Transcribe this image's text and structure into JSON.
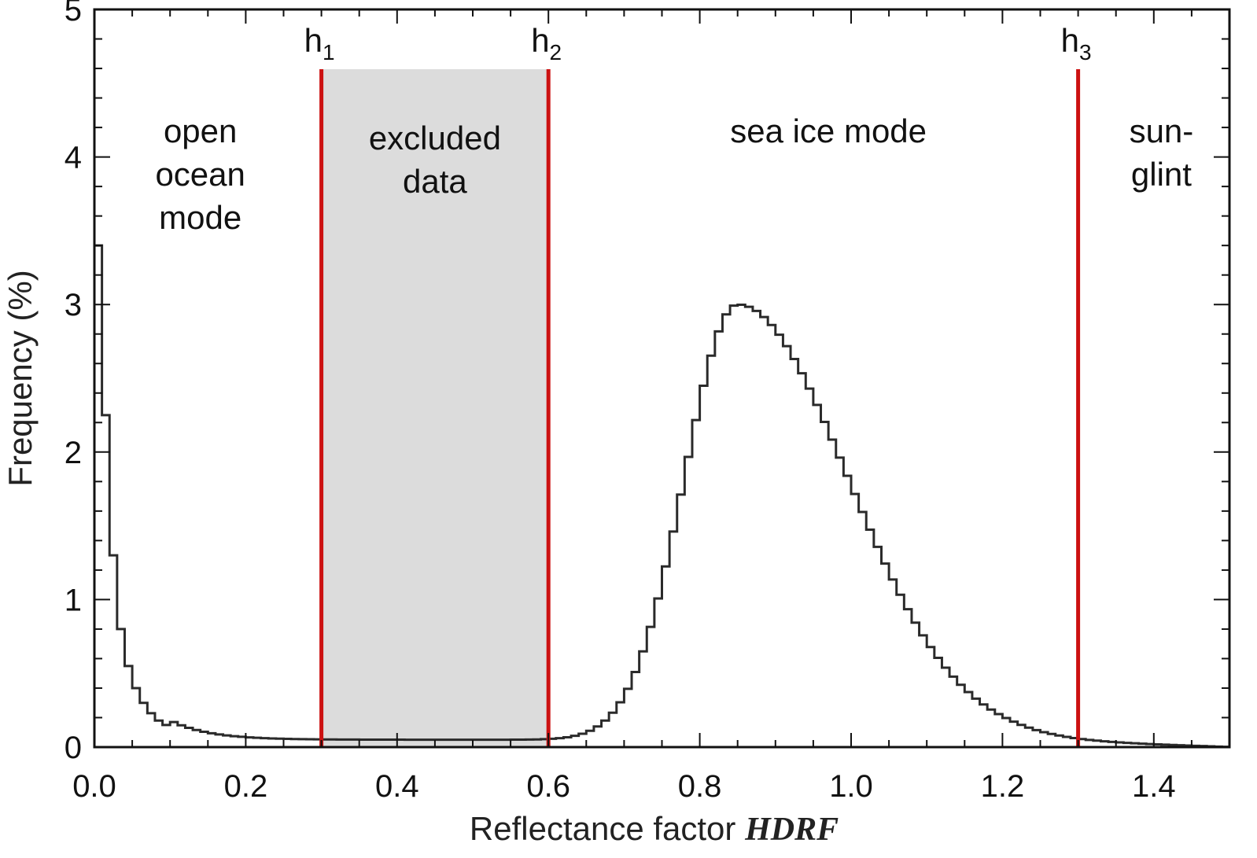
{
  "chart_data": {
    "type": "histogram",
    "xlabel": "Reflectance factor",
    "xlabel_emphasis": "HDRF",
    "ylabel": "Frequency (%)",
    "xlim": [
      0.0,
      1.5
    ],
    "ylim": [
      0,
      5
    ],
    "x_ticks": [
      "0.0",
      "0.2",
      "0.4",
      "0.6",
      "0.8",
      "1.0",
      "1.2",
      "1.4"
    ],
    "y_ticks": [
      "0",
      "1",
      "2",
      "3",
      "4",
      "5"
    ],
    "bin_width": 0.01,
    "excluded_region": {
      "from": 0.3,
      "to": 0.6,
      "label_lines": [
        "excluded",
        "data"
      ],
      "color": "#dcdcdc"
    },
    "thresholds": [
      {
        "name": "h",
        "sub": "1",
        "x": 0.3
      },
      {
        "name": "h",
        "sub": "2",
        "x": 0.6
      },
      {
        "name": "h",
        "sub": "3",
        "x": 1.3
      }
    ],
    "threshold_color": "#cc1111",
    "region_labels": [
      {
        "lines": [
          "open",
          "ocean",
          "mode"
        ],
        "x": 0.14,
        "y": 4.1
      },
      {
        "lines": [
          "sea ice mode"
        ],
        "x": 0.97,
        "y": 4.1
      },
      {
        "lines": [
          "sun-",
          "glint"
        ],
        "x": 1.41,
        "y": 4.1
      }
    ],
    "bins_start": [
      0.0,
      0.01,
      0.02,
      0.03,
      0.04,
      0.05,
      0.06,
      0.07,
      0.08,
      0.09
    ],
    "bins_start_values": [
      3.4,
      2.25,
      1.3,
      0.8,
      0.55,
      0.4,
      0.3,
      0.23,
      0.18,
      0.15
    ],
    "sea_ice_mode": {
      "peak_x": 0.845,
      "peak_y": 3.0,
      "sigma_left": 0.07,
      "sigma_right": 0.145,
      "baseline": 0.05
    }
  }
}
